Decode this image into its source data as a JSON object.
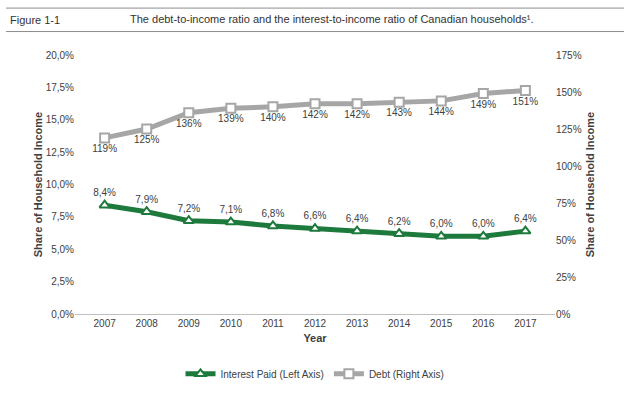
{
  "chart_data": {
    "type": "line",
    "annotations": [
      "Figure 1-1"
    ],
    "title": "The debt-to-income ratio and the interest-to-income ratio of Canadian households¹.",
    "xlabel": "Year",
    "ylabel": "Share of Household Income",
    "y2label": "Share of Household Income",
    "categories": [
      "2007",
      "2008",
      "2009",
      "2010",
      "2011",
      "2012",
      "2013",
      "2014",
      "2015",
      "2016",
      "2017"
    ],
    "series": [
      {
        "name": "Interest Paid (Left Axis)",
        "color": "#1e7a3c",
        "marker": "triangle-up",
        "values": [
          8.4,
          7.9,
          7.2,
          7.1,
          6.8,
          6.6,
          6.4,
          6.2,
          6.0,
          6.0,
          6.4
        ],
        "value_labels": [
          "8,4%",
          "7,9%",
          "7,2%",
          "7,1%",
          "6,8%",
          "6,6%",
          "6,4%",
          "6,2%",
          "6,0%",
          "6,0%",
          "6,4%"
        ]
      },
      {
        "name": "Debt (Right Axis)",
        "color": "#a6a6a6",
        "marker": "square",
        "axis": "y2",
        "values": [
          119,
          125,
          136,
          139,
          140,
          142,
          142,
          143,
          144,
          149,
          151
        ],
        "value_labels": [
          "119%",
          "125%",
          "136%",
          "139%",
          "140%",
          "142%",
          "142%",
          "143%",
          "144%",
          "149%",
          "151%"
        ]
      }
    ],
    "ylim": [
      0,
      20
    ],
    "yticks": [
      {
        "value": 0,
        "label": "0,0%"
      },
      {
        "value": 2.5,
        "label": "2,5%"
      },
      {
        "value": 5,
        "label": "5,0%"
      },
      {
        "value": 7.5,
        "label": "7,5%"
      },
      {
        "value": 10,
        "label": "10,0%"
      },
      {
        "value": 12.5,
        "label": "12,5%"
      },
      {
        "value": 15,
        "label": "15,0%"
      },
      {
        "value": 17.5,
        "label": "17,5%"
      },
      {
        "value": 20,
        "label": "20,0%"
      }
    ],
    "y2lim": [
      0,
      175
    ],
    "y2ticks": [
      {
        "value": 0,
        "label": "0%"
      },
      {
        "value": 25,
        "label": "25%"
      },
      {
        "value": 50,
        "label": "50%"
      },
      {
        "value": 75,
        "label": "75%"
      },
      {
        "value": 100,
        "label": "100%"
      },
      {
        "value": 125,
        "label": "125%"
      },
      {
        "value": 150,
        "label": "150%"
      },
      {
        "value": 175,
        "label": "175%"
      }
    ],
    "grid": false,
    "legend": "bottom",
    "data_labels": true
  }
}
